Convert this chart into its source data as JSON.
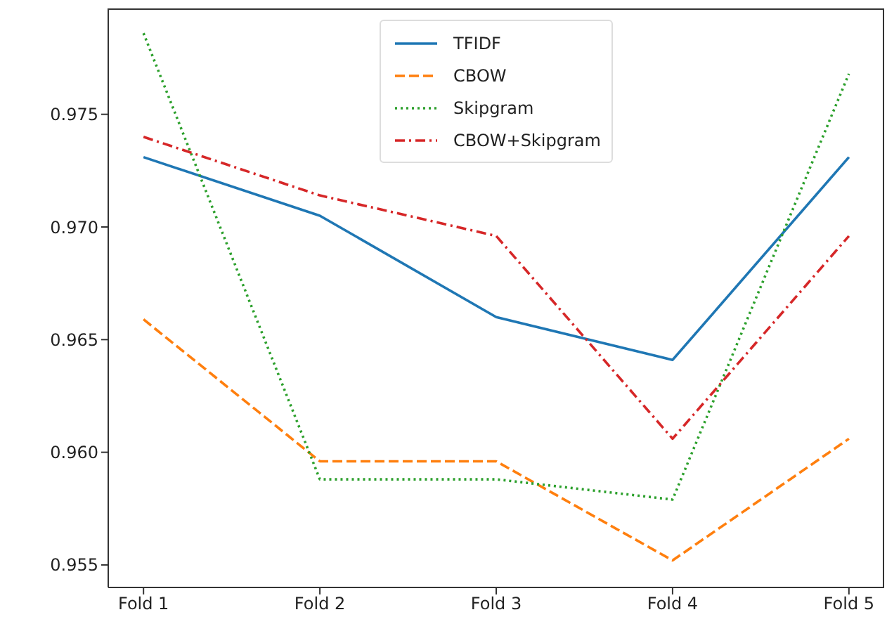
{
  "chart_data": {
    "type": "line",
    "categories": [
      "Fold 1",
      "Fold 2",
      "Fold 3",
      "Fold 4",
      "Fold 5"
    ],
    "series": [
      {
        "name": "TFIDF",
        "color": "#1f77b4",
        "line_style": "solid",
        "values": [
          0.9731,
          0.9705,
          0.966,
          0.9641,
          0.9731
        ]
      },
      {
        "name": "CBOW",
        "color": "#ff7f0e",
        "line_style": "dashed",
        "values": [
          0.9659,
          0.9596,
          0.9596,
          0.9552,
          0.9606
        ]
      },
      {
        "name": "Skipgram",
        "color": "#2ca02c",
        "line_style": "dotted",
        "values": [
          0.9786,
          0.9588,
          0.9588,
          0.9579,
          0.9768
        ]
      },
      {
        "name": "CBOW+Skipgram",
        "color": "#d62728",
        "line_style": "dashdot",
        "values": [
          0.974,
          0.9714,
          0.9696,
          0.9606,
          0.9696
        ]
      }
    ],
    "ylim": [
      0.954,
      0.9797
    ],
    "yticks": [
      {
        "value": 0.955,
        "label": "0.955"
      },
      {
        "value": 0.96,
        "label": "0.960"
      },
      {
        "value": 0.965,
        "label": "0.965"
      },
      {
        "value": 0.97,
        "label": "0.970"
      },
      {
        "value": 0.975,
        "label": "0.975"
      }
    ],
    "grid": false,
    "legend": "top",
    "marker": "none"
  }
}
